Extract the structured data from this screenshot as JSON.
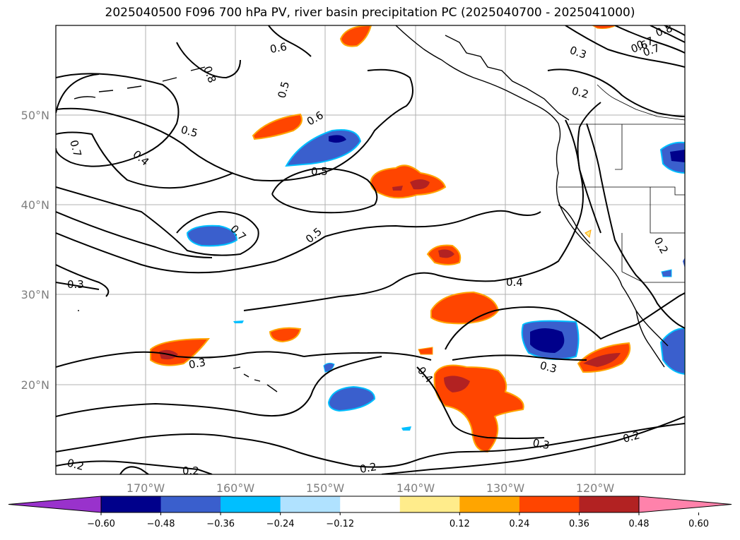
{
  "title": "2025040500 F096 700 hPa PV, river basin precipitation PC (2025040700 - 2025041000)",
  "map": {
    "lon_ticks": [
      "170°W",
      "160°W",
      "150°W",
      "140°W",
      "130°W",
      "120°W"
    ],
    "lat_ticks": [
      "50°N",
      "40°N",
      "30°N",
      "20°N"
    ],
    "extent": {
      "lon_min": -180,
      "lon_max": -110,
      "lat_min": 10,
      "lat_max": 60
    }
  },
  "contour_labels": [
    "0.8",
    "0.7",
    "0.6",
    "0.3",
    "0.2",
    "0.5",
    "0.6",
    "0.5",
    "0.7",
    "0.4",
    "0.5",
    "0.6",
    "0.7",
    "0.5",
    "0.3",
    "0.4",
    "0.2",
    "0.3",
    "0.4",
    "0.3",
    "0.3",
    "0.2",
    "0.2",
    "0.2",
    "0.2",
    "0.8",
    "0.7"
  ],
  "colorbar": {
    "ticks": [
      "−0.60",
      "−0.48",
      "−0.36",
      "−0.24",
      "−0.12",
      "0.12",
      "0.24",
      "0.36",
      "0.48",
      "0.60"
    ],
    "colors": [
      "#9932cc",
      "#00008b",
      "#3a5fcd",
      "#00bfff",
      "#b0e2ff",
      "#ffffff",
      "#ffec8b",
      "#ffa500",
      "#ff4500",
      "#b22222",
      "#ff82ab"
    ]
  }
}
